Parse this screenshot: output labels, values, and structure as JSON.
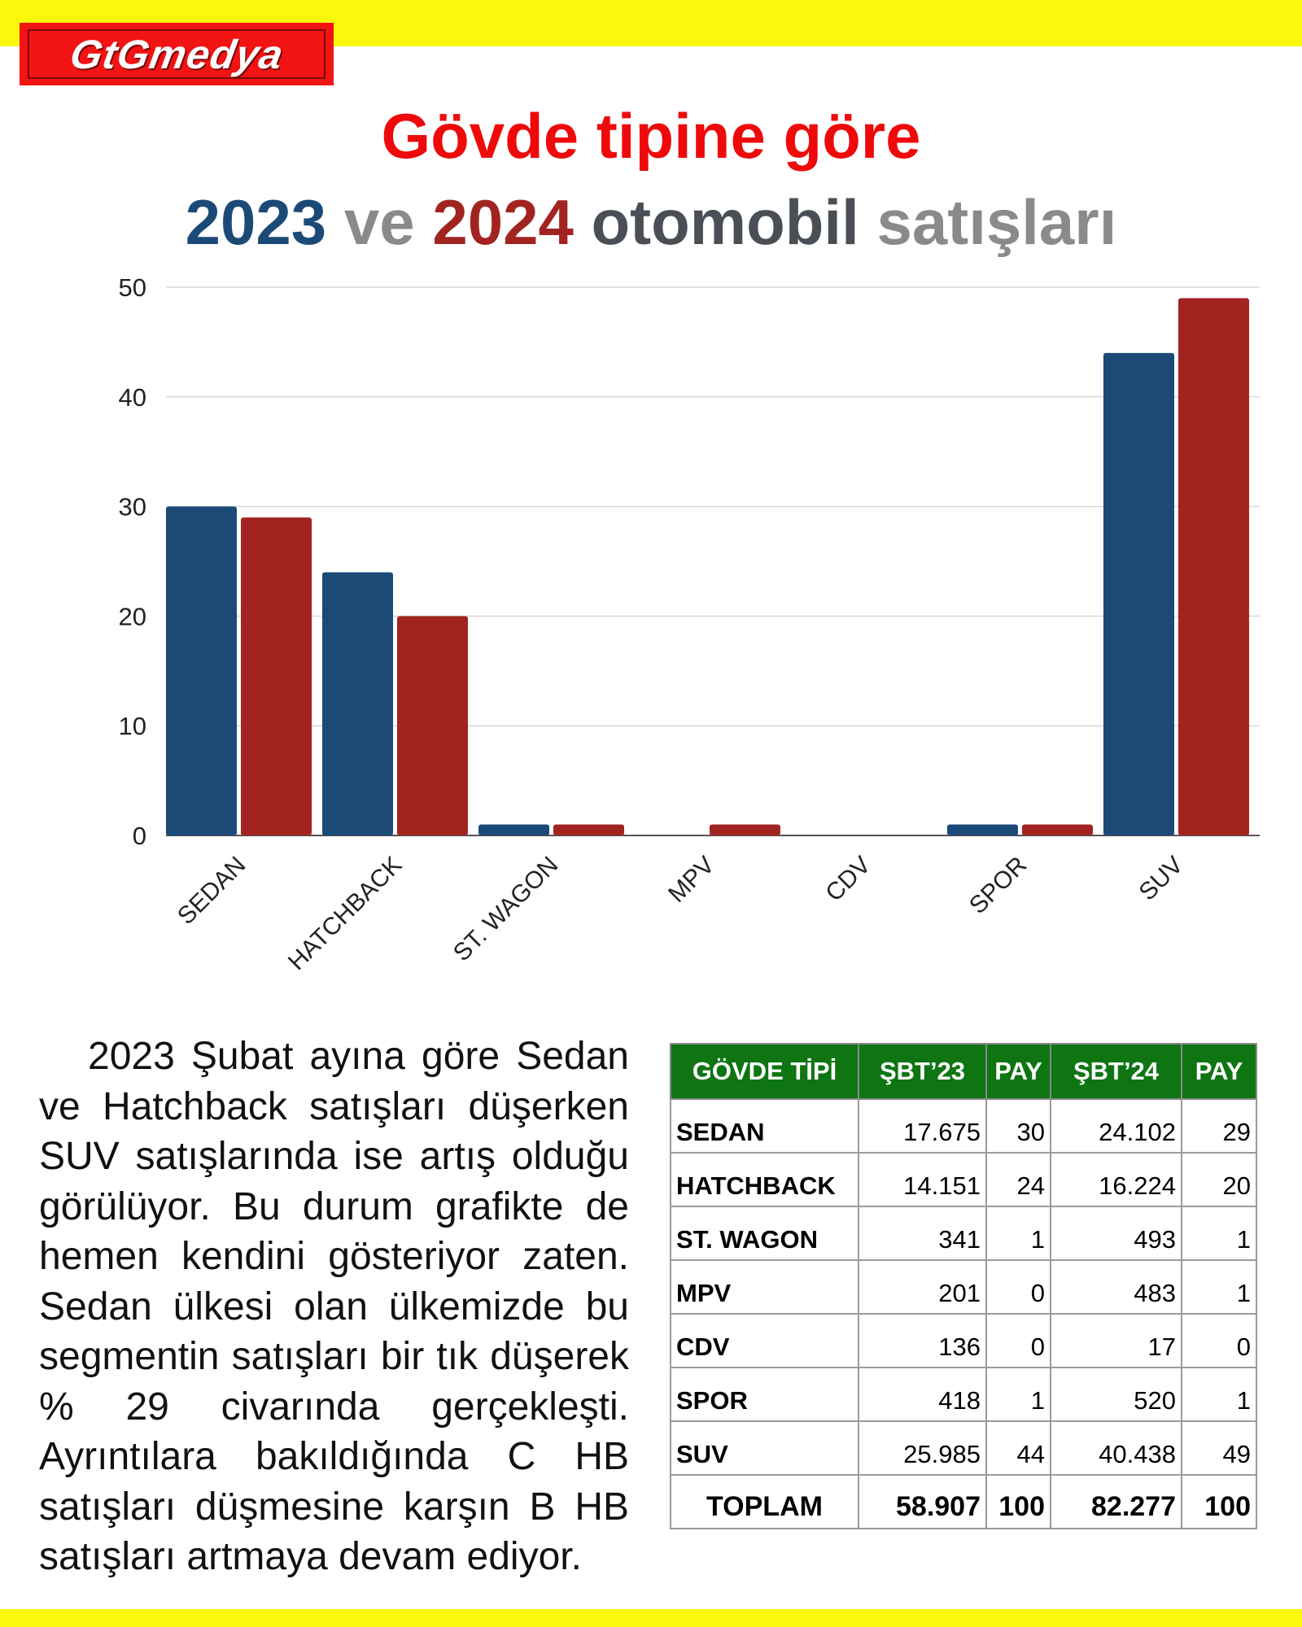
{
  "logo": {
    "text": "GtGmedya"
  },
  "title": {
    "line1": "Gövde tipine göre",
    "year1": "2023",
    "ve": "ve",
    "year2": "2024",
    "otomobil": "otomobil",
    "satislari": "satışları"
  },
  "colors": {
    "series2023": "#1b4a77",
    "series2024": "#a22420",
    "title_red": "#ee0a0a",
    "gray": "#8a8a8a",
    "dark": "#4a4f55",
    "header_green": "#0e7512"
  },
  "chart_data": {
    "type": "bar",
    "categories": [
      "SEDAN",
      "HATCHBACK",
      "ST. WAGON",
      "MPV",
      "CDV",
      "SPOR",
      "SUV"
    ],
    "series": [
      {
        "name": "2023",
        "values": [
          30,
          24,
          1,
          0,
          0,
          1,
          44
        ]
      },
      {
        "name": "2024",
        "values": [
          29,
          20,
          1,
          1,
          0,
          1,
          49
        ]
      }
    ],
    "ylim": [
      0,
      50
    ],
    "yticks": [
      0,
      10,
      20,
      30,
      40,
      50
    ],
    "grid": true
  },
  "paragraph": "2023 Şubat ayına göre Sedan ve Hatchback satışları düşerken SUV satışlarında ise artış olduğu görülüyor. Bu durum grafikte de hemen kendini gösteriyor zaten. Sedan ülkesi olan ülkemizde bu segmentin satışları bir tık düşerek % 29 civarında gerçekleşti. Ayrıntılara bakıldığında C HB satışları düşmesine karşın B HB satışları artmaya devam ediyor.",
  "table": {
    "headers": [
      "GÖVDE TİPİ",
      "ŞBT’23",
      "PAY",
      "ŞBT’24",
      "PAY"
    ],
    "rows": [
      [
        "SEDAN",
        "17.675",
        "30",
        "24.102",
        "29"
      ],
      [
        "HATCHBACK",
        "14.151",
        "24",
        "16.224",
        "20"
      ],
      [
        "ST. WAGON",
        "341",
        "1",
        "493",
        "1"
      ],
      [
        "MPV",
        "201",
        "0",
        "483",
        "1"
      ],
      [
        "CDV",
        "136",
        "0",
        "17",
        "0"
      ],
      [
        "SPOR",
        "418",
        "1",
        "520",
        "1"
      ],
      [
        "SUV",
        "25.985",
        "44",
        "40.438",
        "49"
      ]
    ],
    "total": [
      "TOPLAM",
      "58.907",
      "100",
      "82.277",
      "100"
    ]
  }
}
